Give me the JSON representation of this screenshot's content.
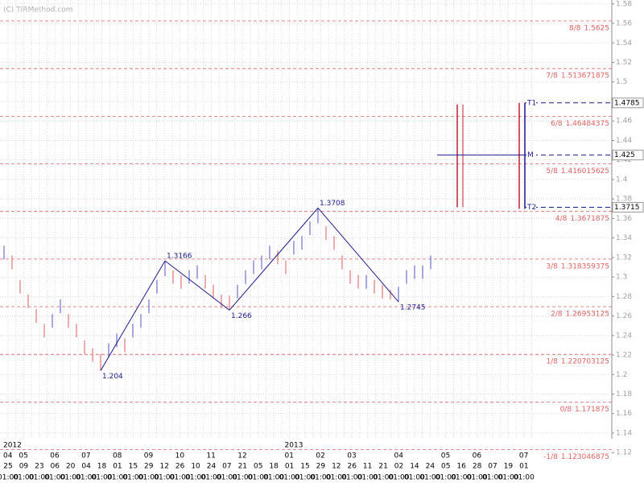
{
  "chart_data": {
    "type": "price-bars",
    "watermark": "(C) TIRMethod.com",
    "ylim": [
      1.12,
      1.58
    ],
    "yticks": [
      1.12,
      1.14,
      1.16,
      1.18,
      1.2,
      1.22,
      1.24,
      1.26,
      1.28,
      1.3,
      1.32,
      1.34,
      1.36,
      1.38,
      1.4,
      1.42,
      1.44,
      1.46,
      1.48,
      1.5,
      1.52,
      1.54,
      1.56,
      1.58
    ],
    "grid": true,
    "up_color": "#8a8ad8",
    "down_color": "#e89090",
    "high": [
      1.332,
      1.322,
      1.297,
      1.282,
      1.267,
      1.252,
      1.262,
      1.277,
      1.262,
      1.252,
      1.235,
      1.227,
      1.221,
      1.232,
      1.242,
      1.237,
      1.252,
      1.262,
      1.277,
      1.297,
      1.3166,
      1.307,
      1.302,
      1.307,
      1.312,
      1.302,
      1.292,
      1.282,
      1.281,
      1.292,
      1.307,
      1.317,
      1.322,
      1.332,
      1.327,
      1.317,
      1.337,
      1.342,
      1.357,
      1.3708,
      1.352,
      1.342,
      1.322,
      1.307,
      1.302,
      1.302,
      1.297,
      1.292,
      1.287,
      1.29,
      1.307,
      1.312,
      1.312,
      1.322
    ],
    "low": [
      1.318,
      1.308,
      1.283,
      1.268,
      1.253,
      1.238,
      1.248,
      1.263,
      1.248,
      1.238,
      1.221,
      1.213,
      1.204,
      1.218,
      1.228,
      1.223,
      1.238,
      1.248,
      1.263,
      1.283,
      1.301,
      1.293,
      1.288,
      1.293,
      1.298,
      1.288,
      1.278,
      1.268,
      1.266,
      1.278,
      1.293,
      1.303,
      1.308,
      1.318,
      1.313,
      1.303,
      1.323,
      1.328,
      1.343,
      1.355,
      1.338,
      1.328,
      1.308,
      1.293,
      1.288,
      1.288,
      1.283,
      1.278,
      1.277,
      1.2745,
      1.293,
      1.298,
      1.298,
      1.308
    ],
    "zigzag": {
      "color": "#1a1a8c",
      "values": [
        null,
        null,
        null,
        null,
        null,
        null,
        null,
        null,
        null,
        null,
        null,
        null,
        1.204,
        null,
        null,
        null,
        null,
        null,
        null,
        null,
        1.3166,
        null,
        null,
        null,
        null,
        null,
        null,
        null,
        1.266,
        null,
        null,
        null,
        null,
        null,
        null,
        null,
        null,
        null,
        null,
        1.3708,
        null,
        null,
        null,
        null,
        null,
        null,
        null,
        null,
        null,
        1.2745,
        null,
        null,
        null,
        null
      ]
    },
    "murrey": {
      "color": "#e06060",
      "levels": [
        {
          "name": "8/8",
          "value": 1.5625
        },
        {
          "name": "7/8",
          "value": 1.513671875
        },
        {
          "name": "6/8",
          "value": 1.46484375
        },
        {
          "name": "5/8",
          "value": 1.416015625
        },
        {
          "name": "4/8",
          "value": 1.3671875
        },
        {
          "name": "3/8",
          "value": 1.318359375
        },
        {
          "name": "2/8",
          "value": 1.26953125
        },
        {
          "name": "1/8",
          "value": 1.220703125
        },
        {
          "name": "0/8",
          "value": 1.171875
        },
        {
          "name": "-1/8",
          "value": 1.123046875
        }
      ]
    },
    "projection": {
      "color": "#1a1a8c",
      "levels": [
        {
          "name": "T1",
          "value": 1.4785
        },
        {
          "name": "M",
          "value": 1.425
        },
        {
          "name": "T2",
          "value": 1.3715
        }
      ]
    },
    "x_axis": {
      "years": [
        "2012",
        null,
        null,
        null,
        null,
        null,
        null,
        null,
        null,
        null,
        null,
        null,
        null,
        null,
        null,
        null,
        null,
        null,
        "2013",
        null,
        null,
        null,
        null,
        null,
        null,
        null,
        null,
        null,
        null,
        null,
        null,
        null,
        null,
        null
      ],
      "months": [
        "04",
        "05",
        null,
        "06",
        null,
        "07",
        null,
        "08",
        null,
        "09",
        null,
        "10",
        null,
        "11",
        null,
        "12",
        null,
        null,
        "01",
        null,
        "02",
        null,
        "03",
        null,
        null,
        "04",
        null,
        null,
        "05",
        null,
        "06",
        null,
        null,
        "07"
      ],
      "days": [
        "25",
        "09",
        "23",
        "06",
        "20",
        "04",
        "18",
        "01",
        "15",
        "29",
        "12",
        "26",
        "10",
        "24",
        "07",
        "21",
        "05",
        "18",
        "01",
        "15",
        "29",
        "12",
        "26",
        "11",
        "21",
        "02",
        "14",
        "24",
        "05",
        "16",
        "28",
        "07",
        "19",
        "01"
      ],
      "times": [
        "01:00",
        "01:00",
        "01:00",
        "01:00",
        "01:00",
        "01:00",
        "01:00",
        "01:00",
        "01:00",
        "01:00",
        "01:00",
        "01:00",
        "01:00",
        "01:00",
        "01:00",
        "01:00",
        "01:00",
        "01:00",
        "01:00",
        "01:00",
        "01:00",
        "01:00",
        "01:00",
        "01:00",
        "01:00",
        "01:00",
        "01:00",
        "01:00",
        "01:00",
        "01:00",
        "01:00",
        "01:00",
        "01:00",
        "01:00"
      ]
    }
  }
}
